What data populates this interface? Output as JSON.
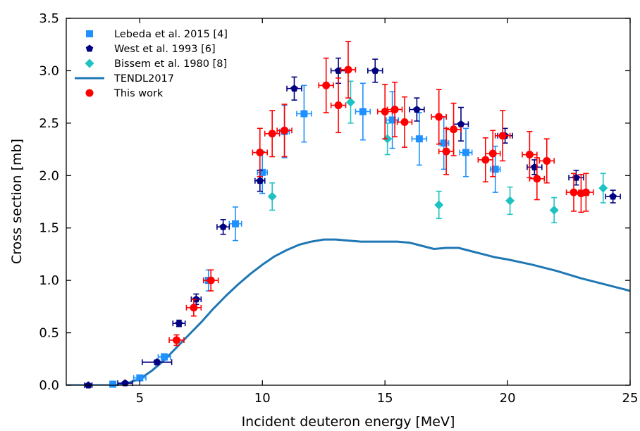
{
  "chart_data": {
    "type": "scatter",
    "xlabel": "Incident deuteron energy  [MeV]",
    "ylabel": "Cross section  [mb]",
    "xlim": [
      2,
      25
    ],
    "ylim": [
      0,
      3.5
    ],
    "xticks": [
      5,
      10,
      15,
      20,
      25
    ],
    "yticks": [
      0.0,
      0.5,
      1.0,
      1.5,
      2.0,
      2.5,
      3.0,
      3.5
    ],
    "xtick_labels": [
      "5",
      "10",
      "15",
      "20",
      "25"
    ],
    "ytick_labels": [
      "0.0",
      "0.5",
      "1.0",
      "1.5",
      "2.0",
      "2.5",
      "3.0",
      "3.5"
    ],
    "grid": false,
    "legend_position": "top-left",
    "series": [
      {
        "name": "Lebeda et al. 2015 [4]",
        "marker": "square",
        "color": "#1e90ff",
        "points": [
          {
            "x": 3.9,
            "y": 0.01,
            "xerr": 0.1,
            "yerr": 0.01
          },
          {
            "x": 5.0,
            "y": 0.07,
            "xerr": 0.25,
            "yerr": 0.02
          },
          {
            "x": 6.0,
            "y": 0.27,
            "xerr": 0.25,
            "yerr": 0.03
          },
          {
            "x": 7.8,
            "y": 1.0,
            "xerr": 0.2,
            "yerr": 0.1
          },
          {
            "x": 8.9,
            "y": 1.54,
            "xerr": 0.25,
            "yerr": 0.16
          },
          {
            "x": 10.0,
            "y": 2.03,
            "xerr": 0.2,
            "yerr": 0.2
          },
          {
            "x": 10.9,
            "y": 2.42,
            "xerr": 0.2,
            "yerr": 0.25
          },
          {
            "x": 11.7,
            "y": 2.59,
            "xerr": 0.3,
            "yerr": 0.27
          },
          {
            "x": 14.1,
            "y": 2.61,
            "xerr": 0.3,
            "yerr": 0.27
          },
          {
            "x": 15.3,
            "y": 2.53,
            "xerr": 0.25,
            "yerr": 0.27
          },
          {
            "x": 16.4,
            "y": 2.35,
            "xerr": 0.3,
            "yerr": 0.25
          },
          {
            "x": 17.4,
            "y": 2.31,
            "xerr": 0.2,
            "yerr": 0.25
          },
          {
            "x": 18.3,
            "y": 2.22,
            "xerr": 0.25,
            "yerr": 0.23
          },
          {
            "x": 19.5,
            "y": 2.06,
            "xerr": 0.2,
            "yerr": 0.22
          }
        ]
      },
      {
        "name": "West et al. 1993 [6]",
        "marker": "pentagon",
        "color": "#000080",
        "points": [
          {
            "x": 2.9,
            "y": 0.0,
            "xerr": 0.15,
            "yerr": 0.01
          },
          {
            "x": 4.4,
            "y": 0.02,
            "xerr": 0.3,
            "yerr": 0.01
          },
          {
            "x": 5.7,
            "y": 0.22,
            "xerr": 0.6,
            "yerr": 0.02
          },
          {
            "x": 6.6,
            "y": 0.59,
            "xerr": 0.25,
            "yerr": 0.03
          },
          {
            "x": 7.3,
            "y": 0.82,
            "xerr": 0.2,
            "yerr": 0.05
          },
          {
            "x": 8.4,
            "y": 1.51,
            "xerr": 0.25,
            "yerr": 0.07
          },
          {
            "x": 9.9,
            "y": 1.95,
            "xerr": 0.2,
            "yerr": 0.1
          },
          {
            "x": 11.3,
            "y": 2.83,
            "xerr": 0.3,
            "yerr": 0.11
          },
          {
            "x": 13.1,
            "y": 3.0,
            "xerr": 0.3,
            "yerr": 0.12
          },
          {
            "x": 14.6,
            "y": 3.0,
            "xerr": 0.3,
            "yerr": 0.11
          },
          {
            "x": 16.3,
            "y": 2.63,
            "xerr": 0.3,
            "yerr": 0.11
          },
          {
            "x": 18.1,
            "y": 2.49,
            "xerr": 0.3,
            "yerr": 0.16
          },
          {
            "x": 19.9,
            "y": 2.38,
            "xerr": 0.3,
            "yerr": 0.07
          },
          {
            "x": 21.1,
            "y": 2.08,
            "xerr": 0.3,
            "yerr": 0.07
          },
          {
            "x": 22.8,
            "y": 1.98,
            "xerr": 0.3,
            "yerr": 0.07
          },
          {
            "x": 24.3,
            "y": 1.8,
            "xerr": 0.3,
            "yerr": 0.06
          }
        ]
      },
      {
        "name": "Bissem et al. 1980 [8]",
        "marker": "diamond",
        "color": "#1fc2c2",
        "points": [
          {
            "x": 10.4,
            "y": 1.8,
            "xerr": 0,
            "yerr": 0.13
          },
          {
            "x": 13.6,
            "y": 2.7,
            "xerr": 0,
            "yerr": 0.2
          },
          {
            "x": 15.1,
            "y": 2.35,
            "xerr": 0,
            "yerr": 0.15
          },
          {
            "x": 17.2,
            "y": 1.72,
            "xerr": 0,
            "yerr": 0.13
          },
          {
            "x": 20.1,
            "y": 1.76,
            "xerr": 0,
            "yerr": 0.13
          },
          {
            "x": 21.9,
            "y": 1.67,
            "xerr": 0,
            "yerr": 0.12
          },
          {
            "x": 23.9,
            "y": 1.88,
            "xerr": 0,
            "yerr": 0.14
          }
        ]
      },
      {
        "name": "This work",
        "marker": "circle",
        "color": "#ff0000",
        "points": [
          {
            "x": 6.5,
            "y": 0.43,
            "xerr": 0.3,
            "yerr": 0.05
          },
          {
            "x": 7.2,
            "y": 0.74,
            "xerr": 0.3,
            "yerr": 0.08
          },
          {
            "x": 7.9,
            "y": 1.0,
            "xerr": 0.3,
            "yerr": 0.1
          },
          {
            "x": 9.9,
            "y": 2.22,
            "xerr": 0.3,
            "yerr": 0.23
          },
          {
            "x": 10.4,
            "y": 2.4,
            "xerr": 0.3,
            "yerr": 0.22
          },
          {
            "x": 10.9,
            "y": 2.43,
            "xerr": 0.3,
            "yerr": 0.25
          },
          {
            "x": 12.6,
            "y": 2.86,
            "xerr": 0.3,
            "yerr": 0.26
          },
          {
            "x": 13.1,
            "y": 2.67,
            "xerr": 0.3,
            "yerr": 0.26
          },
          {
            "x": 13.5,
            "y": 3.01,
            "xerr": 0.3,
            "yerr": 0.27
          },
          {
            "x": 15.0,
            "y": 2.61,
            "xerr": 0.3,
            "yerr": 0.26
          },
          {
            "x": 15.4,
            "y": 2.63,
            "xerr": 0.3,
            "yerr": 0.26
          },
          {
            "x": 15.8,
            "y": 2.51,
            "xerr": 0.3,
            "yerr": 0.24
          },
          {
            "x": 17.2,
            "y": 2.56,
            "xerr": 0.3,
            "yerr": 0.26
          },
          {
            "x": 17.5,
            "y": 2.23,
            "xerr": 0.3,
            "yerr": 0.22
          },
          {
            "x": 17.8,
            "y": 2.44,
            "xerr": 0.3,
            "yerr": 0.25
          },
          {
            "x": 19.1,
            "y": 2.15,
            "xerr": 0.3,
            "yerr": 0.21
          },
          {
            "x": 19.4,
            "y": 2.21,
            "xerr": 0.3,
            "yerr": 0.22
          },
          {
            "x": 19.8,
            "y": 2.38,
            "xerr": 0.3,
            "yerr": 0.24
          },
          {
            "x": 20.9,
            "y": 2.2,
            "xerr": 0.3,
            "yerr": 0.22
          },
          {
            "x": 21.2,
            "y": 1.97,
            "xerr": 0.3,
            "yerr": 0.2
          },
          {
            "x": 21.6,
            "y": 2.14,
            "xerr": 0.3,
            "yerr": 0.21
          },
          {
            "x": 22.7,
            "y": 1.84,
            "xerr": 0.3,
            "yerr": 0.18
          },
          {
            "x": 23.0,
            "y": 1.83,
            "xerr": 0.3,
            "yerr": 0.18
          },
          {
            "x": 23.2,
            "y": 1.84,
            "xerr": 0.3,
            "yerr": 0.18
          }
        ]
      }
    ],
    "curve": {
      "name": "TENDL2017",
      "color": "#1f77b4",
      "x": [
        2,
        4,
        4.5,
        5,
        5.5,
        6,
        6.5,
        7,
        7.5,
        8,
        8.5,
        9,
        9.5,
        10,
        10.5,
        11,
        11.5,
        12,
        12.5,
        13,
        13.5,
        14,
        14.5,
        15,
        15.5,
        16,
        16.5,
        17,
        17.5,
        18,
        18.5,
        19,
        19.5,
        20,
        21,
        22,
        23,
        24,
        25
      ],
      "y": [
        0,
        0,
        0.02,
        0.06,
        0.14,
        0.24,
        0.36,
        0.48,
        0.6,
        0.73,
        0.85,
        0.96,
        1.06,
        1.15,
        1.23,
        1.29,
        1.34,
        1.37,
        1.39,
        1.39,
        1.38,
        1.37,
        1.37,
        1.37,
        1.37,
        1.36,
        1.33,
        1.3,
        1.31,
        1.31,
        1.28,
        1.25,
        1.22,
        1.2,
        1.15,
        1.09,
        1.02,
        0.96,
        0.9
      ]
    },
    "legend_order": [
      "Lebeda et al. 2015 [4]",
      "West et al. 1993 [6]",
      "Bissem et al. 1980 [8]",
      "TENDL2017",
      "This work"
    ]
  }
}
